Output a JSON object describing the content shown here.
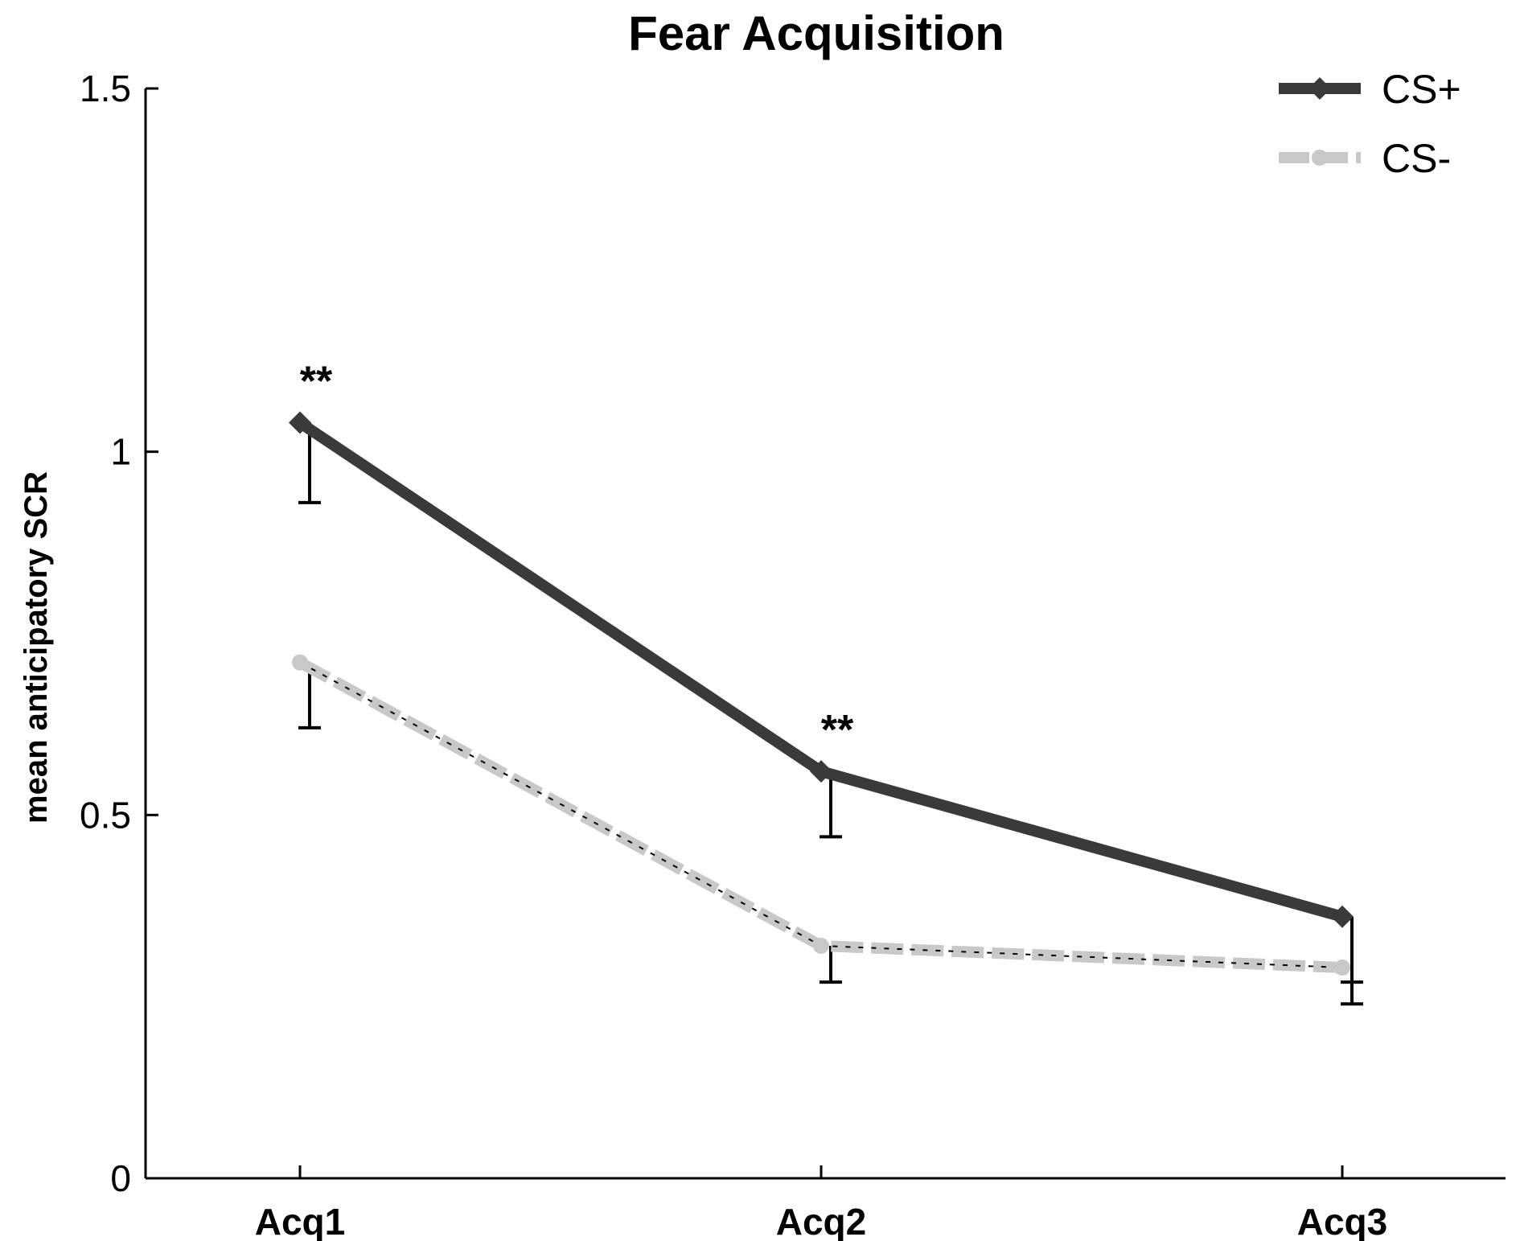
{
  "chart_data": {
    "type": "line",
    "title": "Fear Acquisition",
    "xlabel": "",
    "ylabel": "mean anticipatory SCR",
    "categories": [
      "Acq1",
      "Acq2",
      "Acq3"
    ],
    "ylim": [
      0,
      1.5
    ],
    "yticks": [
      0,
      0.5,
      1,
      1.5
    ],
    "ytick_labels": [
      "0",
      "0.5",
      "1",
      "1.5"
    ],
    "grid": false,
    "legend_position": "top-right",
    "series": [
      {
        "name": "CS+",
        "color": "#3a3a3a",
        "style": "solid",
        "marker": "diamond",
        "values": [
          1.04,
          0.56,
          0.36
        ],
        "error_lower": [
          0.93,
          0.47,
          0.27
        ]
      },
      {
        "name": "CS-",
        "color": "#c8c8c8",
        "style": "dashed",
        "marker": "dot",
        "values": [
          0.71,
          0.32,
          0.29
        ],
        "error_lower": [
          0.62,
          0.27,
          0.24
        ]
      }
    ],
    "annotations": [
      {
        "category": "Acq1",
        "text": "**",
        "y": 1.1
      },
      {
        "category": "Acq2",
        "text": "**",
        "y": 0.62
      }
    ]
  }
}
